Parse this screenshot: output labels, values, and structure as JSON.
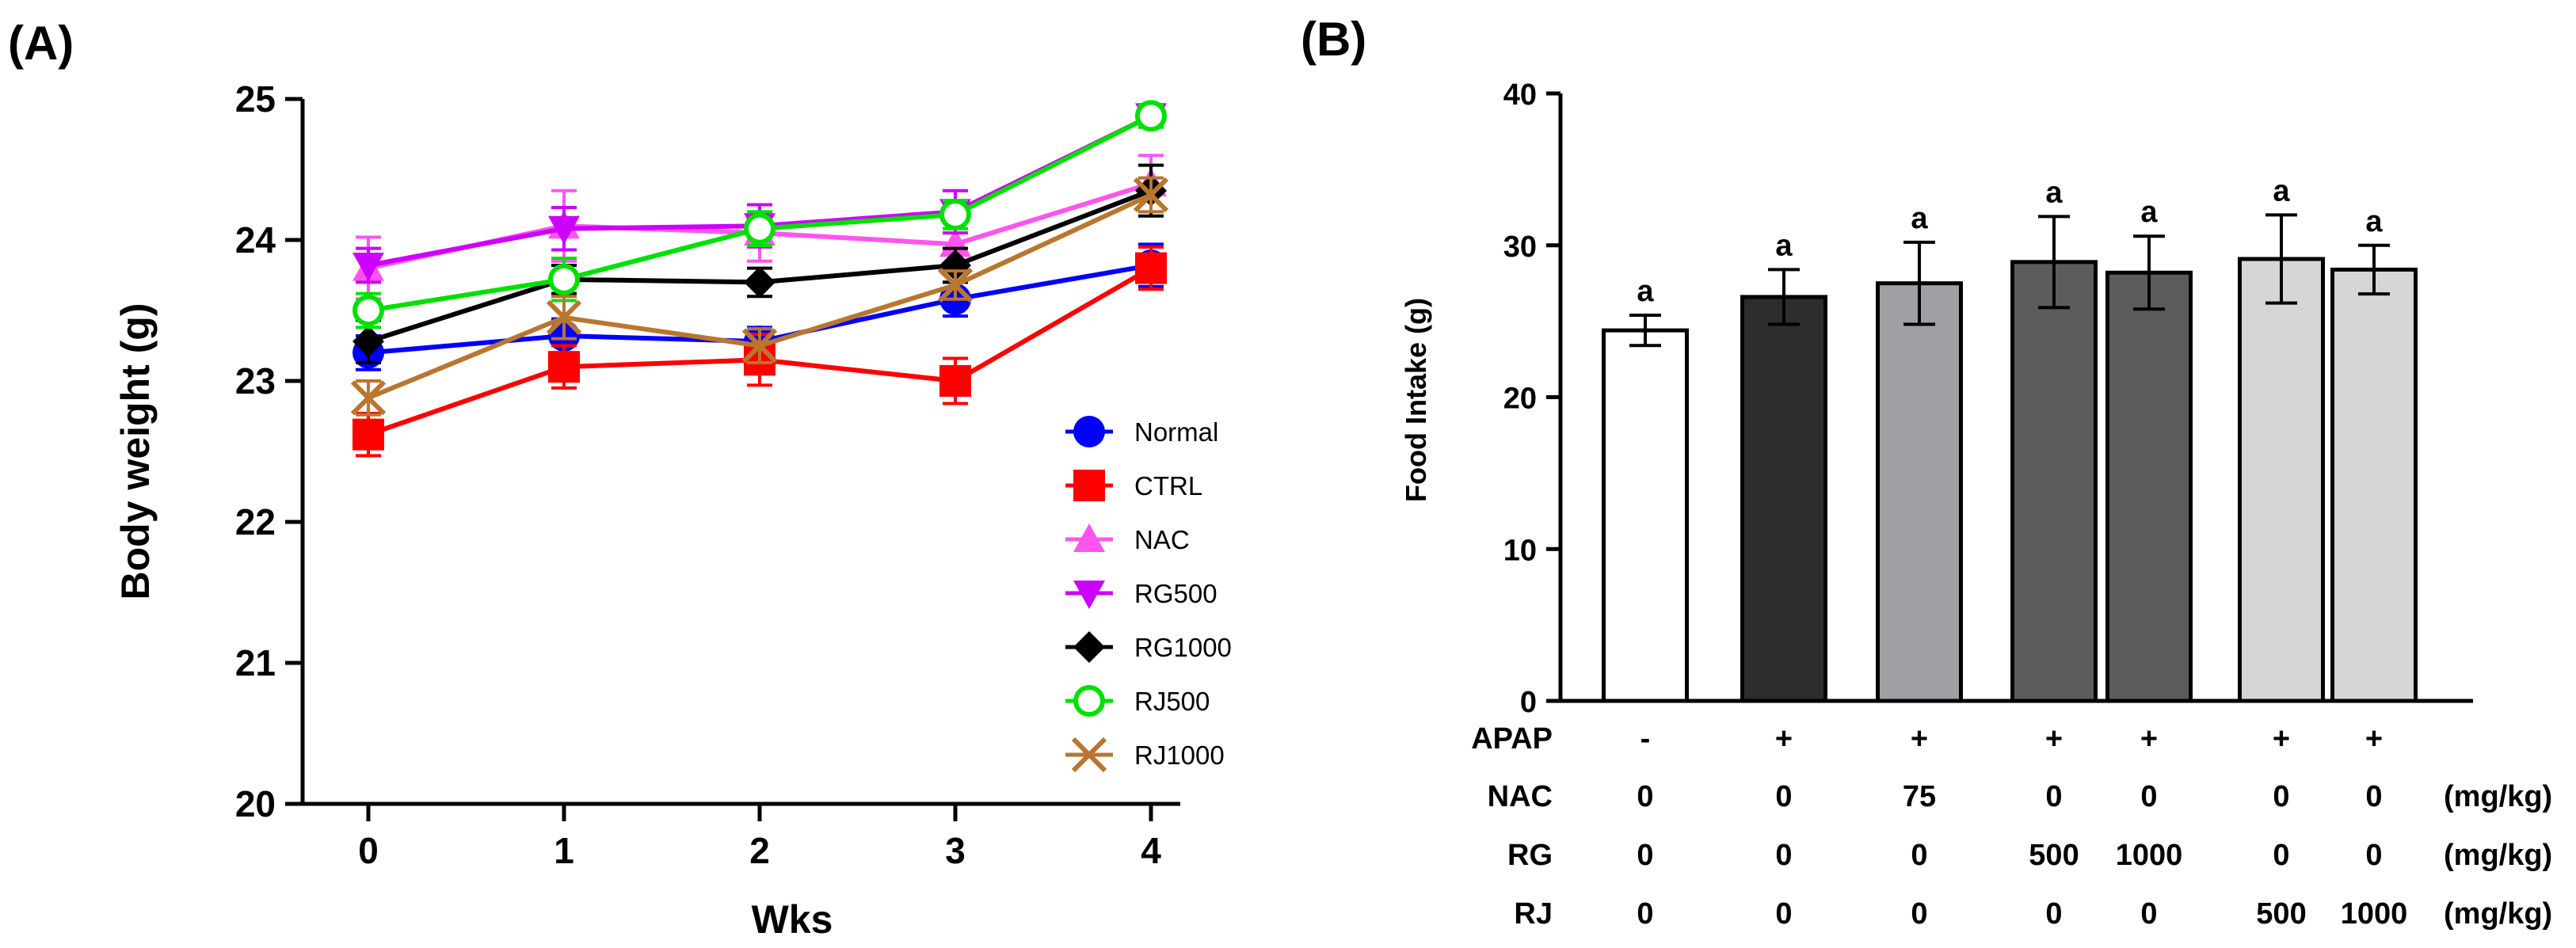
{
  "panels": {
    "a": "(A)",
    "b": "(B)"
  },
  "chart_data": [
    {
      "type": "line",
      "panel": "(A)",
      "xlabel": "Wks",
      "ylabel": "Body weight (g)",
      "x": [
        0,
        1,
        2,
        3,
        4
      ],
      "xlim": [
        -0.3,
        4.2
      ],
      "ylim": [
        20,
        25
      ],
      "yticks": [
        20,
        21,
        22,
        23,
        24,
        25
      ],
      "legend_position": "bottom-right",
      "series": [
        {
          "name": "Normal",
          "color": "#0000ff",
          "marker": "circle",
          "values": [
            23.2,
            23.32,
            23.28,
            23.58,
            23.82
          ],
          "errors": [
            0.12,
            0.12,
            0.1,
            0.12,
            0.15
          ]
        },
        {
          "name": "CTRL",
          "color": "#ff0000",
          "marker": "square",
          "values": [
            22.62,
            23.1,
            23.15,
            23.0,
            23.8
          ],
          "errors": [
            0.15,
            0.15,
            0.18,
            0.16,
            0.15
          ]
        },
        {
          "name": "NAC",
          "color": "#ff55ee",
          "marker": "triangle-up",
          "values": [
            23.8,
            24.1,
            24.05,
            23.97,
            24.4
          ],
          "errors": [
            0.22,
            0.25,
            0.2,
            0.18,
            0.2
          ]
        },
        {
          "name": "RG500",
          "color": "#cc00ff",
          "marker": "triangle-down",
          "values": [
            23.82,
            24.08,
            24.1,
            24.2,
            24.88
          ],
          "errors": [
            0.12,
            0.15,
            0.15,
            0.15,
            0.08
          ]
        },
        {
          "name": "RG1000",
          "color": "#000000",
          "marker": "diamond",
          "values": [
            23.28,
            23.72,
            23.7,
            23.82,
            24.35
          ],
          "errors": [
            0.15,
            0.1,
            0.1,
            0.12,
            0.18
          ]
        },
        {
          "name": "RJ500",
          "color": "#00e000",
          "marker": "open-circle",
          "values": [
            23.5,
            23.72,
            24.08,
            24.18,
            24.88
          ],
          "errors": [
            0.12,
            0.15,
            0.12,
            0.1,
            0.08
          ]
        },
        {
          "name": "RJ1000",
          "color": "#b8762f",
          "marker": "x",
          "values": [
            22.88,
            23.45,
            23.25,
            23.68,
            24.32
          ],
          "errors": [
            0.12,
            0.15,
            0.12,
            0.1,
            0.12
          ]
        }
      ]
    },
    {
      "type": "bar",
      "panel": "(B)",
      "ylabel": "Food Intake (g)",
      "ylim": [
        0,
        40
      ],
      "yticks": [
        0,
        10,
        20,
        30,
        40
      ],
      "bars": [
        {
          "value": 24.4,
          "error": 1.0,
          "color": "#ffffff",
          "label": "a"
        },
        {
          "value": 26.6,
          "error": 1.8,
          "color": "#2d2d2d",
          "label": "a"
        },
        {
          "value": 27.5,
          "error": 2.7,
          "color": "#a0a0a4",
          "label": "a"
        },
        {
          "value": 28.9,
          "error": 3.0,
          "color": "#5c5c5c",
          "label": "a"
        },
        {
          "value": 28.2,
          "error": 2.4,
          "color": "#5c5c5c",
          "label": "a"
        },
        {
          "value": 29.1,
          "error": 2.9,
          "color": "#d6d6d6",
          "label": "a"
        },
        {
          "value": 28.4,
          "error": 1.6,
          "color": "#d6d6d6",
          "label": "a"
        }
      ],
      "treatment_table": {
        "unit": "(mg/kg)",
        "rows": [
          {
            "label": "APAP",
            "values": [
              "-",
              "+",
              "+",
              "+",
              "+",
              "+",
              "+"
            ],
            "unit": ""
          },
          {
            "label": "NAC",
            "values": [
              "0",
              "0",
              "75",
              "0",
              "0",
              "0",
              "0"
            ],
            "unit": "(mg/kg)"
          },
          {
            "label": "RG",
            "values": [
              "0",
              "0",
              "0",
              "500",
              "1000",
              "0",
              "0"
            ],
            "unit": "(mg/kg)"
          },
          {
            "label": "RJ",
            "values": [
              "0",
              "0",
              "0",
              "0",
              "0",
              "500",
              "1000"
            ],
            "unit": "(mg/kg)"
          }
        ]
      }
    }
  ]
}
